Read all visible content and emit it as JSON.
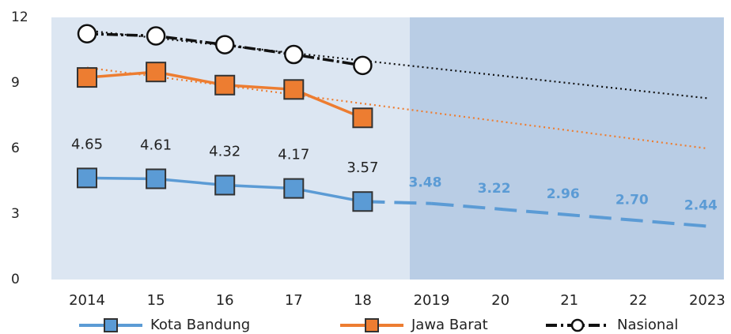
{
  "chart_data": {
    "type": "line",
    "categories": [
      "2014",
      "15",
      "16",
      "17",
      "18",
      "2019",
      "20",
      "21",
      "22",
      "2023"
    ],
    "ylim": [
      0,
      12
    ],
    "yticks": [
      0,
      3,
      6,
      9,
      12
    ],
    "series": [
      {
        "name": "Kota Bandung",
        "color": "#5b9bd5",
        "values": [
          4.65,
          4.61,
          4.32,
          4.17,
          3.57,
          null,
          null,
          null,
          null,
          null
        ],
        "value_labels": [
          "4.65",
          "4.61",
          "4.32",
          "4.17",
          "3.57",
          null,
          null,
          null,
          null,
          null
        ],
        "projection": [
          null,
          null,
          null,
          null,
          null,
          3.48,
          3.22,
          2.96,
          2.7,
          2.44
        ],
        "projection_labels": [
          null,
          null,
          null,
          null,
          null,
          "3.48",
          "3.22",
          "2.96",
          "2.70",
          "2.44"
        ]
      },
      {
        "name": "Jawa Barat",
        "color": "#ed7d31",
        "values": [
          9.25,
          9.5,
          8.9,
          8.7,
          7.4,
          null,
          null,
          null,
          null,
          null
        ],
        "trend": [
          9.7,
          6.0
        ]
      },
      {
        "name": "Nasional",
        "color": "#111111",
        "values": [
          11.25,
          11.15,
          10.75,
          10.3,
          9.8,
          null,
          null,
          null,
          null,
          null
        ],
        "trend": [
          11.4,
          8.3
        ]
      }
    ]
  }
}
